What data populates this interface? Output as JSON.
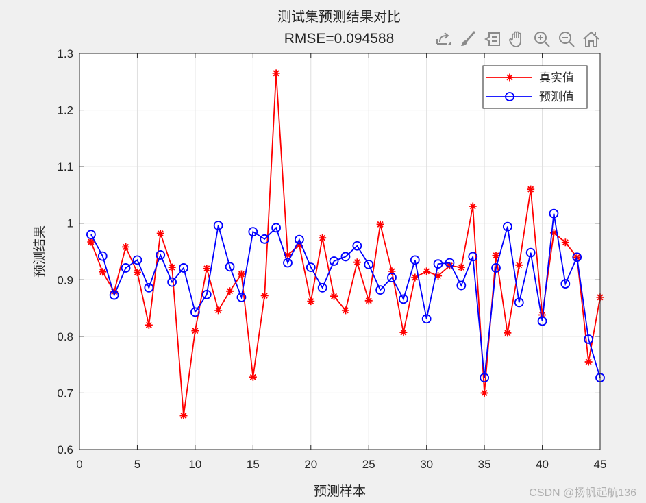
{
  "chart_data": {
    "type": "line",
    "title": "测试集预测结果对比",
    "subtitle": "RMSE=0.094588",
    "xlabel": "预测样本",
    "ylabel": "预测结果",
    "xlim": [
      0,
      45
    ],
    "ylim": [
      0.6,
      1.3
    ],
    "xticks": [
      0,
      5,
      10,
      15,
      20,
      25,
      30,
      35,
      40,
      45
    ],
    "yticks": [
      0.6,
      0.7,
      0.8,
      0.9,
      1.0,
      1.1,
      1.2,
      1.3
    ],
    "ytick_labels": [
      "0.6",
      "0.7",
      "0.8",
      "0.9",
      "1",
      "1.1",
      "1.2",
      "1.3"
    ],
    "grid": true,
    "legend_position": "northeast",
    "x": [
      1,
      2,
      3,
      4,
      5,
      6,
      7,
      8,
      9,
      10,
      11,
      12,
      13,
      14,
      15,
      16,
      17,
      18,
      19,
      20,
      21,
      22,
      23,
      24,
      25,
      26,
      27,
      28,
      29,
      30,
      31,
      32,
      33,
      34,
      35,
      36,
      37,
      38,
      39,
      40,
      41,
      42,
      43,
      44,
      45
    ],
    "series": [
      {
        "name": "真实值",
        "color": "#ff0000",
        "marker": "asterisk",
        "values": [
          0.967,
          0.914,
          0.879,
          0.958,
          0.913,
          0.82,
          0.982,
          0.922,
          0.66,
          0.81,
          0.92,
          0.846,
          0.88,
          0.91,
          0.728,
          0.872,
          1.265,
          0.944,
          0.961,
          0.862,
          0.974,
          0.871,
          0.846,
          0.931,
          0.863,
          0.998,
          0.915,
          0.807,
          0.904,
          0.915,
          0.907,
          0.925,
          0.922,
          1.03,
          0.7,
          0.943,
          0.806,
          0.926,
          1.06,
          0.838,
          0.983,
          0.966,
          0.94,
          0.755,
          0.869
        ]
      },
      {
        "name": "预测值",
        "color": "#0000ff",
        "marker": "circle",
        "values": [
          0.98,
          0.942,
          0.873,
          0.921,
          0.935,
          0.886,
          0.944,
          0.896,
          0.921,
          0.843,
          0.874,
          0.996,
          0.923,
          0.869,
          0.985,
          0.972,
          0.992,
          0.93,
          0.971,
          0.922,
          0.886,
          0.933,
          0.941,
          0.96,
          0.927,
          0.882,
          0.904,
          0.866,
          0.935,
          0.831,
          0.928,
          0.93,
          0.89,
          0.941,
          0.727,
          0.921,
          0.994,
          0.86,
          0.948,
          0.827,
          1.017,
          0.893,
          0.94,
          0.795,
          0.727
        ]
      }
    ]
  },
  "toolbar": {
    "items": [
      {
        "name": "export-icon"
      },
      {
        "name": "brush-icon"
      },
      {
        "name": "datatip-icon"
      },
      {
        "name": "pan-hand-icon"
      },
      {
        "name": "zoom-in-icon"
      },
      {
        "name": "zoom-out-icon"
      },
      {
        "name": "home-icon"
      }
    ]
  },
  "watermark": "CSDN @扬帆起航136"
}
